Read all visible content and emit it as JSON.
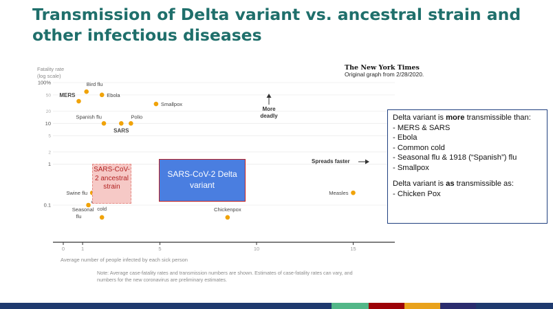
{
  "slide": {
    "title": "Transmission of Delta variant vs. ancestral strain and other infectious diseases",
    "nyt_logo": "The New York Times",
    "source": "Original graph from 2/28/2020."
  },
  "chart_data": {
    "type": "scatter",
    "xlabel": "Average number of people infected by each sick person",
    "ylabel": "Fatality rate (log scale)",
    "y_scale": "log",
    "xlim": [
      -1,
      17.3
    ],
    "ylim": [
      0.05,
      130
    ],
    "x_ticks": [
      0,
      1,
      5,
      10,
      15
    ],
    "y_ticks": [
      {
        "value": 100,
        "label": "100%"
      },
      {
        "value": 50,
        "label": "50"
      },
      {
        "value": 20,
        "label": "20"
      },
      {
        "value": 10,
        "label": "10"
      },
      {
        "value": 5,
        "label": "5"
      },
      {
        "value": 2,
        "label": "2"
      },
      {
        "value": 1,
        "label": "1"
      },
      {
        "value": 0.1,
        "label": "0.1"
      }
    ],
    "points": [
      {
        "name": "Bird flu",
        "x": 1.2,
        "y": 60
      },
      {
        "name": "MERS",
        "x": 0.8,
        "y": 35,
        "bold": true
      },
      {
        "name": "Ebola",
        "x": 2.0,
        "y": 50
      },
      {
        "name": "Smallpox",
        "x": 4.8,
        "y": 30
      },
      {
        "name": "Spanish flu",
        "x": 2.1,
        "y": 10
      },
      {
        "name": "SARS",
        "x": 3.0,
        "y": 10,
        "bold": true
      },
      {
        "name": "Polio",
        "x": 3.5,
        "y": 10
      },
      {
        "name": "Swine flu",
        "x": 1.5,
        "y": 0.2
      },
      {
        "name": "Seasonal flu",
        "x": 1.3,
        "y": 0.1
      },
      {
        "name": "Common cold",
        "x": 2.0,
        "y": 0.05
      },
      {
        "name": "Chickenpox",
        "x": 8.5,
        "y": 0.05
      },
      {
        "name": "Measles",
        "x": 15.0,
        "y": 0.2
      }
    ],
    "annotations": {
      "more_deadly": "More deadly",
      "spreads_faster": "Spreads faster"
    },
    "note": "Note: Average case-fatality rates and transmission numbers are shown. Estimates of case-fatality rates can vary, and numbers for the new coronavirus are preliminary estimates."
  },
  "overlays": {
    "sars_ancestral": "SARS-CoV-2 ancestral strain",
    "delta_variant": "SARS-CoV-2 Delta variant"
  },
  "textbox": {
    "head_pre": "Delta variant is ",
    "head_bold": "more",
    "head_post": " transmissible than:",
    "items": [
      "MERS & SARS",
      "Ebola",
      "Common cold",
      "Seasonal flu & 1918 (“Spanish”) flu",
      "Smallpox"
    ],
    "as_pre": "Delta variant is ",
    "as_bold": "as",
    "as_post": " transmissible as:",
    "as_item": "- Chicken Pox"
  },
  "footer_colors": [
    "#1f3a6e",
    "#52b788",
    "#9d0208",
    "#e9a21c",
    "#2b2d6e",
    "#1f3a6e"
  ]
}
